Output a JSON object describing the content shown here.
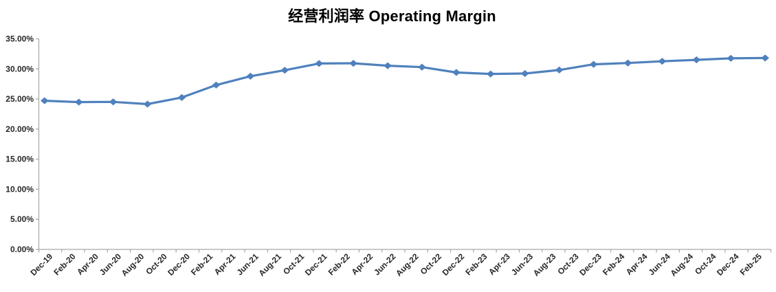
{
  "page": {
    "background": "#ffffff"
  },
  "chart_data": {
    "type": "line",
    "title": "经营利润率 Operating Margin",
    "xlabel": "",
    "ylabel": "",
    "legend": "none",
    "grid": "off",
    "plot_background": "#ffffff",
    "y_axis": {
      "min": 0,
      "max": 35,
      "step": 5,
      "format": "percent",
      "tick_labels": [
        "35.00%",
        "30.00%",
        "25.00%",
        "20.00%",
        "15.00%",
        "10.00%",
        "5.00%",
        "0.00%"
      ]
    },
    "x_axis": {
      "tick_label_interval_months": 2,
      "data_interval_months": 3,
      "tick_labels": [
        "Dec-19",
        "Feb-20",
        "Apr-20",
        "Jun-20",
        "Aug-20",
        "Oct-20",
        "Dec-20",
        "Feb-21",
        "Apr-21",
        "Jun-21",
        "Aug-21",
        "Oct-21",
        "Dec-21",
        "Feb-22",
        "Apr-22",
        "Jun-22",
        "Aug-22",
        "Oct-22",
        "Dec-22",
        "Feb-23",
        "Apr-23",
        "Jun-23",
        "Aug-23",
        "Oct-23",
        "Dec-23",
        "Feb-24",
        "Apr-24",
        "Jun-24",
        "Aug-24",
        "Oct-24",
        "Dec-24",
        "Feb-25"
      ]
    },
    "series": [
      {
        "name": "经营利润率 Operating Margin",
        "color": "#4F81BD",
        "marker": "diamond",
        "points": [
          {
            "period": "Dec-19",
            "value": 24.71
          },
          {
            "period": "Mar-20",
            "value": 24.48
          },
          {
            "period": "Jun-20",
            "value": 24.52
          },
          {
            "period": "Sep-20",
            "value": 24.15
          },
          {
            "period": "Dec-20",
            "value": 25.25
          },
          {
            "period": "Mar-21",
            "value": 27.32
          },
          {
            "period": "Jun-21",
            "value": 28.79
          },
          {
            "period": "Sep-21",
            "value": 29.78
          },
          {
            "period": "Dec-21",
            "value": 30.9
          },
          {
            "period": "Mar-22",
            "value": 30.93
          },
          {
            "period": "Jun-22",
            "value": 30.53
          },
          {
            "period": "Sep-22",
            "value": 30.29
          },
          {
            "period": "Dec-22",
            "value": 29.41
          },
          {
            "period": "Mar-23",
            "value": 29.16
          },
          {
            "period": "Jun-23",
            "value": 29.23
          },
          {
            "period": "Sep-23",
            "value": 29.82
          },
          {
            "period": "Dec-23",
            "value": 30.76
          },
          {
            "period": "Mar-24",
            "value": 30.98
          },
          {
            "period": "Jun-24",
            "value": 31.27
          },
          {
            "period": "Sep-24",
            "value": 31.51
          },
          {
            "period": "Dec-24",
            "value": 31.76
          },
          {
            "period": "Mar-25",
            "value": 31.81
          }
        ]
      }
    ],
    "colors": {
      "line": "#4F81BD",
      "marker": "#4F81BD",
      "axis": "#A6A6A6",
      "tick": "#A6A6A6",
      "label_text": "#262626",
      "title_text": "#000000"
    }
  }
}
